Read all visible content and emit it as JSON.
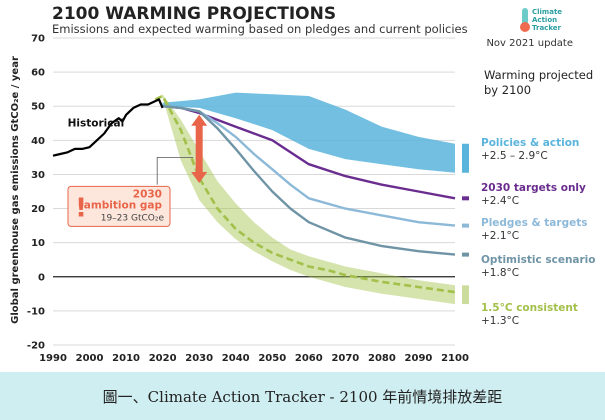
{
  "chart_data": {
    "type": "line",
    "title": "2100 WARMING PROJECTIONS",
    "subtitle": "Emissions and expected warming based on pledges and current policies",
    "update_note": "Nov 2021 update",
    "logo_text": "Climate Action Tracker",
    "ylabel": "Global greenhouse gas emissions  GtCO₂e / year",
    "xlim": [
      1990,
      2100
    ],
    "ylim": [
      -20,
      70
    ],
    "x_ticks": [
      1990,
      2000,
      2010,
      2020,
      2030,
      2040,
      2050,
      2060,
      2070,
      2080,
      2090,
      2100
    ],
    "y_ticks": [
      -20,
      -10,
      0,
      10,
      20,
      30,
      40,
      50,
      60,
      70
    ],
    "grid": true,
    "warming_header": "Warming projected by 2100",
    "historical": {
      "name": "Historical",
      "color": "#000000",
      "x": [
        1990,
        1992,
        1994,
        1996,
        1998,
        2000,
        2002,
        2004,
        2006,
        2008,
        2009,
        2010,
        2012,
        2014,
        2016,
        2018,
        2019,
        2020
      ],
      "y": [
        35.5,
        36,
        36.5,
        37.5,
        37.5,
        38,
        40,
        42,
        45,
        46.5,
        45.5,
        47.5,
        49.5,
        50.5,
        50.5,
        51.5,
        52,
        49.5
      ]
    },
    "series": [
      {
        "name": "Policies & action",
        "range": "+2.5 – 2.9°C",
        "color": "#5ab4dc",
        "x": [
          2020,
          2030,
          2040,
          2050,
          2060,
          2070,
          2080,
          2090,
          2100
        ],
        "upper": [
          51,
          52,
          54,
          53.5,
          53,
          49,
          44,
          41,
          39
        ],
        "lower": [
          50,
          49.5,
          46.5,
          43,
          37.5,
          34.5,
          33,
          31.5,
          30.5
        ]
      },
      {
        "name": "2030 targets only",
        "range": "+2.4°C",
        "color": "#6a2d8f",
        "x": [
          2020,
          2025,
          2030,
          2035,
          2040,
          2045,
          2050,
          2055,
          2060,
          2070,
          2080,
          2090,
          2100
        ],
        "y": [
          50,
          49.5,
          48,
          46,
          44,
          42,
          40,
          36.5,
          33,
          29.5,
          27,
          25,
          23
        ]
      },
      {
        "name": "Pledges & targets",
        "range": "+2.1°C",
        "color": "#8db9d9",
        "x": [
          2020,
          2025,
          2030,
          2035,
          2040,
          2045,
          2050,
          2055,
          2060,
          2070,
          2080,
          2090,
          2100
        ],
        "y": [
          50,
          49.5,
          48.5,
          45,
          41,
          36,
          31.5,
          27,
          23,
          20,
          18,
          16,
          15
        ]
      },
      {
        "name": "Optimistic scenario",
        "range": "+1.8°C",
        "color": "#6f94a6",
        "x": [
          2020,
          2025,
          2030,
          2035,
          2040,
          2045,
          2050,
          2055,
          2060,
          2070,
          2080,
          2090,
          2100
        ],
        "y": [
          50,
          49.5,
          48.5,
          43.5,
          37.5,
          31,
          25,
          20,
          16,
          11.5,
          9,
          7.5,
          6.5
        ]
      },
      {
        "name": "1.5°C consistent",
        "range": "+1.3°C",
        "color": "#a2c04a",
        "x": [
          2018,
          2020,
          2025,
          2030,
          2035,
          2040,
          2045,
          2050,
          2055,
          2060,
          2065,
          2070,
          2080,
          2090,
          2100
        ],
        "y": [
          52,
          53,
          43,
          29,
          20,
          14,
          10,
          7,
          5,
          3,
          2,
          0.5,
          -1.5,
          -3,
          -4.5
        ],
        "upper": [
          52,
          53.5,
          46,
          37,
          28,
          21.5,
          16,
          11.5,
          8,
          6,
          4.5,
          3,
          1,
          -1,
          -2.5
        ],
        "lower": [
          52,
          52.5,
          34,
          22.5,
          16,
          11,
          7.5,
          4.5,
          2,
          0,
          -1.5,
          -3,
          -5,
          -6.5,
          -8
        ]
      }
    ],
    "ambition_gap": {
      "year": 2030,
      "top": 47.5,
      "bottom": 27.5,
      "title": "2030 ambition gap",
      "range": "19–23",
      "unit": "GtCO₂e",
      "color": "#e8654a"
    }
  },
  "caption": "圖一、Climate Action Tracker - 2100 年前情境排放差距"
}
